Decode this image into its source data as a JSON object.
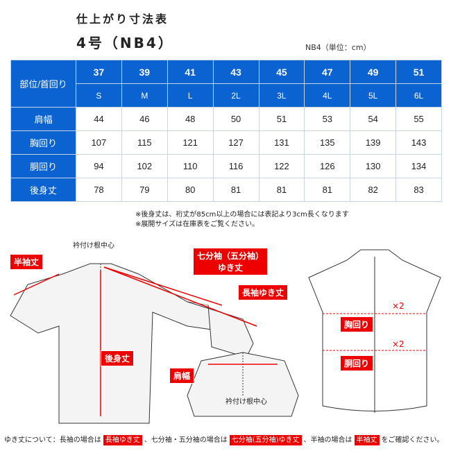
{
  "title": "仕上がり寸法表",
  "model": "4号（NB4）",
  "unit": "NB4（単位：cm）",
  "table": {
    "corner": "部位/首回り",
    "necks": [
      "37",
      "39",
      "41",
      "43",
      "45",
      "47",
      "49",
      "51"
    ],
    "sizes": [
      "S",
      "M",
      "L",
      "2L",
      "3L",
      "4L",
      "5L",
      "6L"
    ],
    "rows": [
      {
        "label": "肩幅",
        "values": [
          "44",
          "46",
          "48",
          "50",
          "51",
          "53",
          "54",
          "55"
        ]
      },
      {
        "label": "胸回り",
        "values": [
          "107",
          "115",
          "121",
          "127",
          "131",
          "135",
          "139",
          "143"
        ]
      },
      {
        "label": "胴回り",
        "values": [
          "94",
          "102",
          "110",
          "116",
          "122",
          "126",
          "130",
          "134"
        ]
      },
      {
        "label": "後身丈",
        "values": [
          "78",
          "79",
          "80",
          "81",
          "81",
          "81",
          "82",
          "83"
        ]
      }
    ]
  },
  "notes": [
    "※後身丈は、裄丈が85cm以上の場合には表記より3cm長くなります",
    "※展開サイズは在庫表をご覧ください。"
  ],
  "diagram": {
    "collar_center_top": "衿付け根中心",
    "half_sleeve": "半袖丈",
    "three_quarter_1": "七分袖（五分袖）",
    "three_quarter_2": "ゆき丈",
    "long_sleeve": "長袖ゆき丈",
    "back_length": "後身丈",
    "shoulder": "肩幅",
    "collar_center_bottom": "衿付け根中心",
    "chest": "胸回り",
    "waist": "胴回り",
    "x2a": "×2",
    "x2b": "×2"
  },
  "footer": {
    "t1": "ゆき丈について：長袖の場合は",
    "tag1": "長袖ゆき丈",
    "t2": "、七分袖・五分袖の場合は",
    "tag2": "七分袖(五分袖)ゆき丈",
    "t3": "、半袖の場合は",
    "tag3": "半袖丈",
    "t4": "をご確認ください。"
  },
  "colors": {
    "header_blue": "#0a63d0",
    "label_red": "#e00000"
  }
}
